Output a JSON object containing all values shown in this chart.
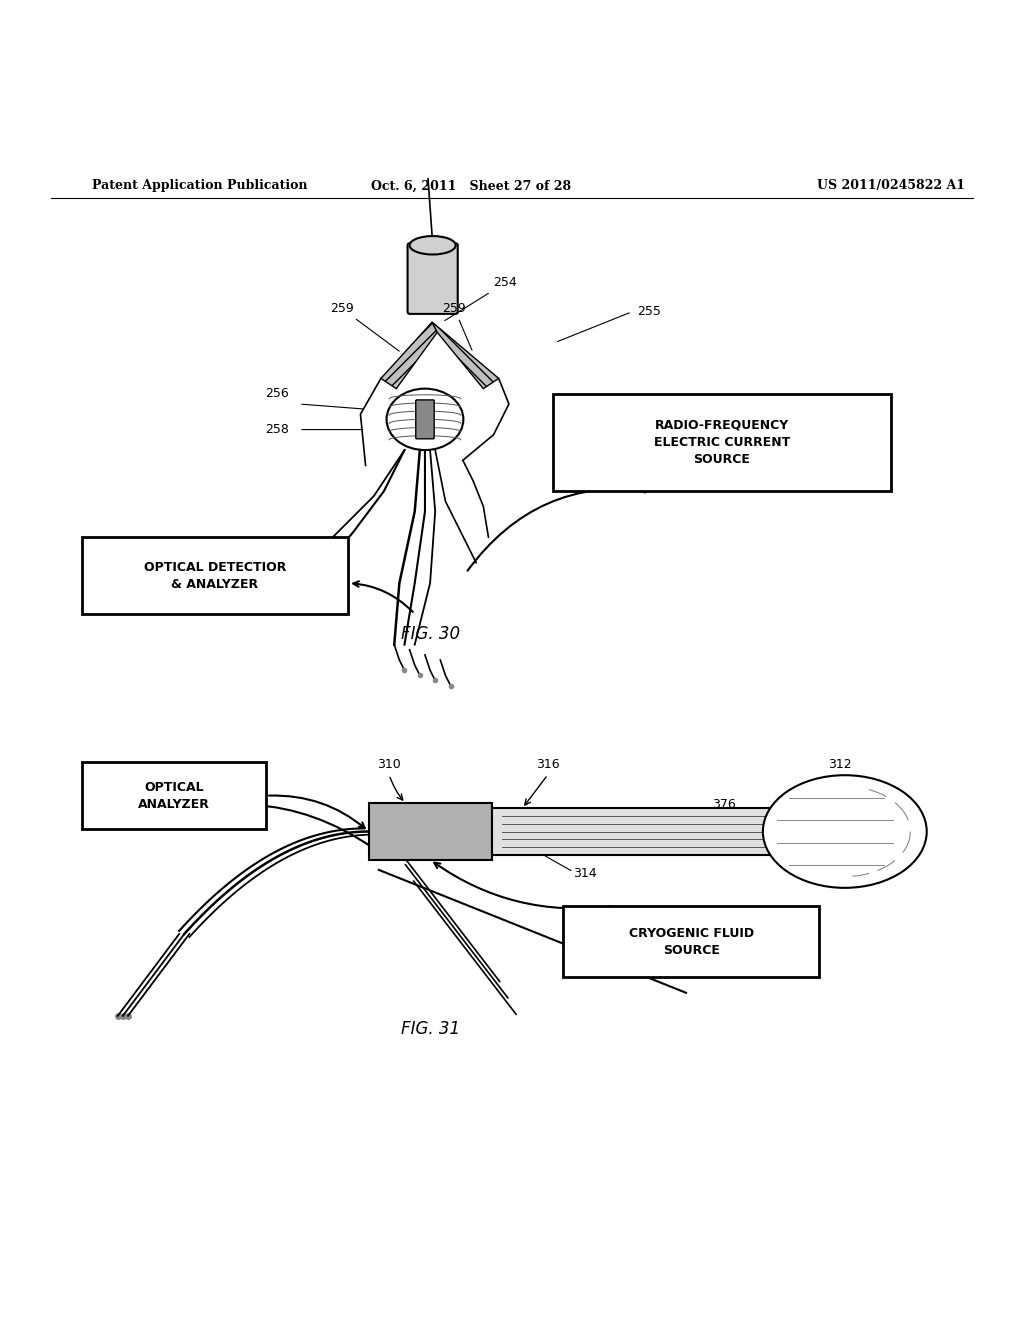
{
  "bg_color": "#ffffff",
  "header_left": "Patent Application Publication",
  "header_mid": "Oct. 6, 2011   Sheet 27 of 28",
  "header_right": "US 2011/0245822 A1",
  "fig30_label": "FIG. 30",
  "fig31_label": "FIG. 31",
  "box1_text": "RADIO-FREQUENCY\nELECTRIC CURRENT\nSOURCE",
  "box2_text": "OPTICAL DETECTIOR\n& ANALYZER",
  "box3_text": "OPTICAL\nANALYZER",
  "box4_text": "CRYOGENIC FLUID\nSOURCE"
}
